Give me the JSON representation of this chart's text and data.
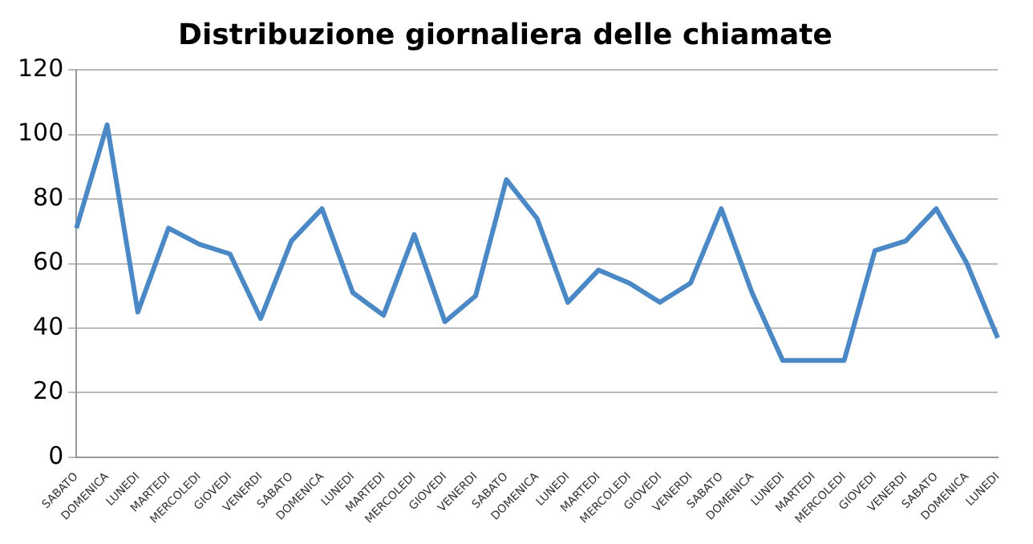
{
  "chart_data": {
    "type": "line",
    "title": "Distribuzione giornaliera delle chiamate",
    "categories": [
      "SABATO",
      "DOMENICA",
      "LUNEDI",
      "MARTEDI",
      "MERCOLEDI",
      "GIOVEDI",
      "VENERDI",
      "SABATO",
      "DOMENICA",
      "LUNEDI",
      "MARTEDI",
      "MERCOLEDI",
      "GIOVEDI",
      "VENERDI",
      "SABATO",
      "DOMENICA",
      "LUNEDI",
      "MARTEDI",
      "MERCOLEDI",
      "GIOVEDI",
      "VENERDI",
      "SABATO",
      "DOMENICA",
      "LUNEDI",
      "MARTEDI",
      "MERCOLEDI",
      "GIOVEDI",
      "VENERDI",
      "SABATO",
      "DOMENICA",
      "LUNEDI"
    ],
    "series": [
      {
        "color": "#4a88c6",
        "values": [
          71,
          103,
          45,
          71,
          66,
          63,
          43,
          67,
          77,
          51,
          44,
          69,
          42,
          50,
          86,
          74,
          48,
          58,
          54,
          48,
          54,
          77,
          51,
          30,
          30,
          30,
          64,
          67,
          77,
          60,
          37
        ]
      }
    ],
    "ylim": [
      0,
      120
    ],
    "yticks": [
      0,
      20,
      40,
      60,
      80,
      100,
      120
    ],
    "grid": "y",
    "legend": false,
    "marker": "none",
    "line_style": "solid"
  }
}
